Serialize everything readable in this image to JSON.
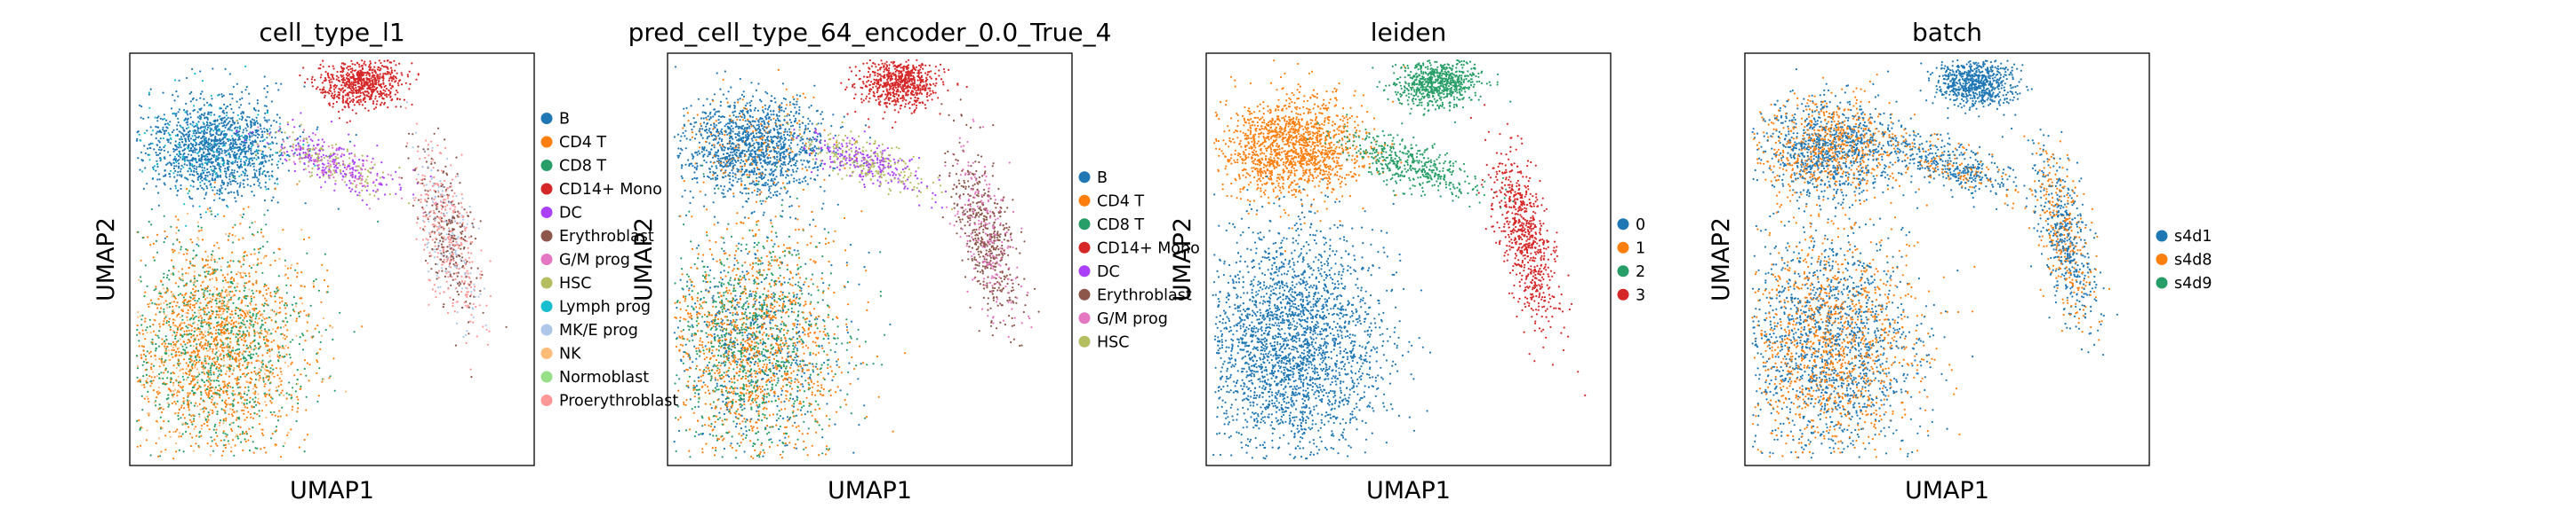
{
  "figure": {
    "background": "#ffffff"
  },
  "chart_data": [
    {
      "type": "scatter",
      "title": "cell_type_l1",
      "xlabel": "UMAP1",
      "ylabel": "UMAP2",
      "grid": false,
      "legend_placement": "right",
      "legend": [
        {
          "label": "B",
          "color": "#1f77b4"
        },
        {
          "label": "CD4 T",
          "color": "#ff7f0e"
        },
        {
          "label": "CD8 T",
          "color": "#279e68"
        },
        {
          "label": "CD14+ Mono",
          "color": "#d62728"
        },
        {
          "label": "DC",
          "color": "#aa40fc"
        },
        {
          "label": "Erythroblast",
          "color": "#8c564b"
        },
        {
          "label": "G/M prog",
          "color": "#e377c2"
        },
        {
          "label": "HSC",
          "color": "#b5bd61"
        },
        {
          "label": "Lymph prog",
          "color": "#17becf"
        },
        {
          "label": "MK/E prog",
          "color": "#aec7e8"
        },
        {
          "label": "NK",
          "color": "#ffbb78"
        },
        {
          "label": "Normoblast",
          "color": "#98df8a"
        },
        {
          "label": "Proerythroblast",
          "color": "#ff9896"
        }
      ]
    },
    {
      "type": "scatter",
      "title": "pred_cell_type_64_encoder_0.0_True_4",
      "xlabel": "UMAP1",
      "ylabel": "UMAP2",
      "grid": false,
      "legend_placement": "right",
      "legend": [
        {
          "label": "B",
          "color": "#1f77b4"
        },
        {
          "label": "CD4 T",
          "color": "#ff7f0e"
        },
        {
          "label": "CD8 T",
          "color": "#279e68"
        },
        {
          "label": "CD14+ Mono",
          "color": "#d62728"
        },
        {
          "label": "DC",
          "color": "#aa40fc"
        },
        {
          "label": "Erythroblast",
          "color": "#8c564b"
        },
        {
          "label": "G/M prog",
          "color": "#e377c2"
        },
        {
          "label": "HSC",
          "color": "#b5bd61"
        }
      ]
    },
    {
      "type": "scatter",
      "title": "leiden",
      "xlabel": "UMAP1",
      "ylabel": "UMAP2",
      "grid": false,
      "legend_placement": "right",
      "legend": [
        {
          "label": "0",
          "color": "#1f77b4"
        },
        {
          "label": "1",
          "color": "#ff7f0e"
        },
        {
          "label": "2",
          "color": "#279e68"
        },
        {
          "label": "3",
          "color": "#d62728"
        }
      ]
    },
    {
      "type": "scatter",
      "title": "batch",
      "xlabel": "UMAP1",
      "ylabel": "UMAP2",
      "grid": false,
      "legend_placement": "right",
      "legend": [
        {
          "label": "s4d1",
          "color": "#1f77b4"
        },
        {
          "label": "s4d8",
          "color": "#ff7f0e"
        },
        {
          "label": "s4d9",
          "color": "#279e68"
        }
      ]
    }
  ]
}
